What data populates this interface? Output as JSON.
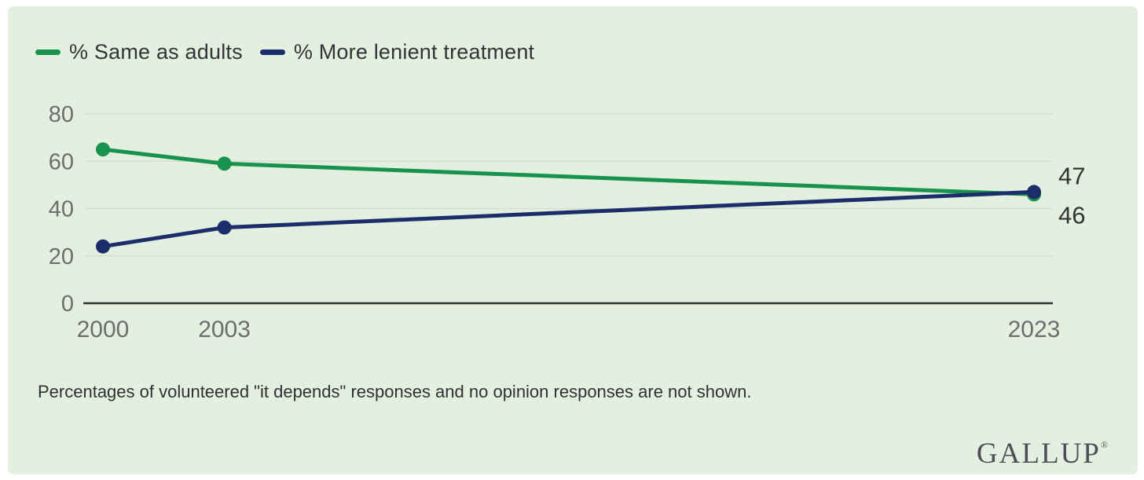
{
  "colors": {
    "panel_background": "#e4f0df",
    "grid": "#d7ddd4",
    "axis": "#2e2e2e",
    "tick_label": "#6d6d6d",
    "value_label": "#333333",
    "legend_text": "#333437",
    "footnote_text": "#2f3033",
    "logo": "#4d4e57",
    "series_green": "#17934e",
    "series_navy": "#1b2d6b"
  },
  "chart_data": {
    "type": "line",
    "title": "",
    "xlabel": "",
    "ylabel": "",
    "x": [
      2000,
      2003,
      2023
    ],
    "x_tick_labels": [
      "2000",
      "2003",
      "2023"
    ],
    "ylim": [
      0,
      80
    ],
    "yticks": [
      0,
      20,
      40,
      60,
      80
    ],
    "grid": true,
    "legend_position": "top-left",
    "series": [
      {
        "name": "% Same as adults",
        "color": "#17934e",
        "values": [
          65,
          59,
          46
        ],
        "end_label": "46"
      },
      {
        "name": "% More lenient treatment",
        "color": "#1b2d6b",
        "values": [
          24,
          32,
          47
        ],
        "end_label": "47"
      }
    ]
  },
  "footnote": "Percentages of volunteered \"it depends\" responses and no opinion responses are not shown.",
  "branding": {
    "logo_text": "GALLUP",
    "registered_mark": "®"
  }
}
